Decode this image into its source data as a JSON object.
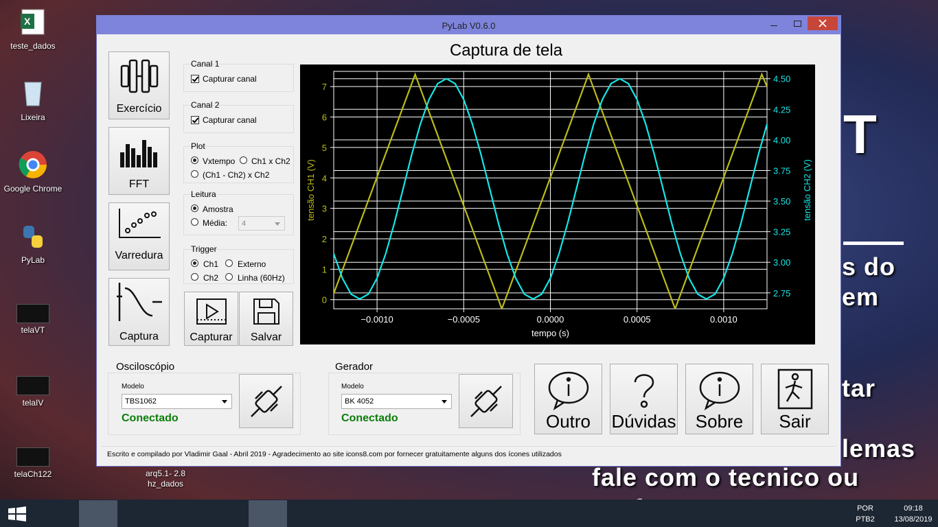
{
  "desktop_icons": [
    "teste_dados",
    "Lixeira",
    "Google Chrome",
    "PyLab",
    "telaVT",
    "telaIV",
    "telaCh122"
  ],
  "desktop_file": [
    "arq5.1- 2.8",
    "hz_dados"
  ],
  "wallpaper_text": [
    "T",
    "s do",
    "em",
    "tar",
    "lemas",
    "fale com o tecnico ou",
    "professor"
  ],
  "window": {
    "title": "PyLab V0.6.0"
  },
  "sidebar": [
    "Exercício",
    "FFT",
    "Varredura",
    "Captura"
  ],
  "canal1": {
    "title": "Canal 1",
    "checkbox": "Capturar canal"
  },
  "canal2": {
    "title": "Canal 2",
    "checkbox": "Capturar canal"
  },
  "plot": {
    "title": "Plot",
    "options": [
      "Vxtempo",
      "Ch1 x Ch2",
      "(Ch1 - Ch2) x Ch2"
    ]
  },
  "leitura": {
    "title": "Leitura",
    "options": [
      "Amostra",
      "Média:"
    ],
    "media_value": "4"
  },
  "trigger": {
    "title": "Trigger",
    "options": [
      "Ch1",
      "Externo",
      "Ch2",
      "Linha (60Hz)"
    ]
  },
  "actions": [
    "Capturar",
    "Salvar"
  ],
  "chart_data": {
    "type": "line",
    "title": "Captura de tela",
    "xlabel": "tempo (s)",
    "ylabel": "tensão CH1 (V)",
    "y2label": "tensão CH2 (V)",
    "xlim": [
      -0.00125,
      0.00125
    ],
    "ylim": [
      -0.3,
      7.5
    ],
    "y2lim": [
      2.62,
      4.56
    ],
    "xticks": [
      {
        "value": -0.001,
        "label": "−0.0010"
      },
      {
        "value": -0.0005,
        "label": "−0.0005"
      },
      {
        "value": 0,
        "label": "0.0000"
      },
      {
        "value": 0.0005,
        "label": "0.0005"
      },
      {
        "value": 0.001,
        "label": "0.0010"
      }
    ],
    "yticks": [
      0,
      1,
      2,
      3,
      4,
      5,
      6,
      7
    ],
    "y2ticks": [
      2.75,
      {
        "value": 3,
        "label": "3.00"
      },
      3.25,
      {
        "value": 3.5,
        "label": "3.50"
      },
      3.75,
      {
        "value": 4,
        "label": "4.00"
      },
      4.25,
      {
        "value": 4.5,
        "label": "4.50"
      }
    ],
    "grid": true,
    "series": [
      {
        "name": "CH1",
        "color": "#bcbc1a",
        "x": [
          -0.00125,
          -0.00078,
          -0.00028,
          0.00022,
          0.00072,
          0.00122,
          0.00125
        ],
        "values": [
          0.2,
          7.4,
          -0.3,
          7.4,
          -0.3,
          7.4,
          7.0
        ]
      },
      {
        "name": "CH2",
        "color": "#17e6e6",
        "axis": "y2",
        "x": [
          -0.00125,
          -0.0012,
          -0.00115,
          -0.0011,
          -0.00105,
          -0.001,
          -0.00095,
          -0.0009,
          -0.00085,
          -0.0008,
          -0.00075,
          -0.0007,
          -0.00065,
          -0.0006,
          -0.00055,
          -0.0005,
          -0.00045,
          -0.0004,
          -0.00035,
          -0.0003,
          -0.00025,
          -0.0002,
          -0.00015,
          -0.0001,
          -5e-05,
          0,
          5e-05,
          0.0001,
          0.00015,
          0.0002,
          0.00025,
          0.0003,
          0.00035,
          0.0004,
          0.00045,
          0.0005,
          0.00055,
          0.0006,
          0.00065,
          0.0007,
          0.00075,
          0.0008,
          0.00085,
          0.0009,
          0.00095,
          0.001,
          0.00105,
          0.0011,
          0.00115,
          0.0012,
          0.00125
        ],
        "values": [
          3.07,
          2.87,
          2.74,
          2.7,
          2.74,
          2.87,
          3.07,
          3.32,
          3.6,
          3.88,
          4.13,
          4.33,
          4.46,
          4.5,
          4.46,
          4.33,
          4.13,
          3.88,
          3.6,
          3.32,
          3.07,
          2.87,
          2.74,
          2.7,
          2.74,
          2.87,
          3.07,
          3.32,
          3.6,
          3.88,
          4.13,
          4.33,
          4.46,
          4.5,
          4.46,
          4.33,
          4.13,
          3.88,
          3.6,
          3.32,
          3.07,
          2.87,
          2.74,
          2.7,
          2.74,
          2.87,
          3.07,
          3.32,
          3.6,
          3.88,
          4.13
        ]
      }
    ]
  },
  "osciloscopio": {
    "title": "Osciloscópio",
    "model_label": "Modelo",
    "model": "TBS1062",
    "status": "Conectado"
  },
  "gerador": {
    "title": "Gerador",
    "model_label": "Modelo",
    "model": "BK 4052",
    "status": "Conectado"
  },
  "buttons": [
    "Outro",
    "Dúvidas",
    "Sobre",
    "Sair"
  ],
  "footer": "Escrito e compilado por Vladimir Gaal - Abril 2019 - Agradecimento ao site icons8.com por fornecer gratuitamente alguns dos ícones utilizados",
  "taskbar": {
    "language": "POR",
    "layout": "PTB2",
    "time": "09:18",
    "date": "13/08/2019"
  }
}
